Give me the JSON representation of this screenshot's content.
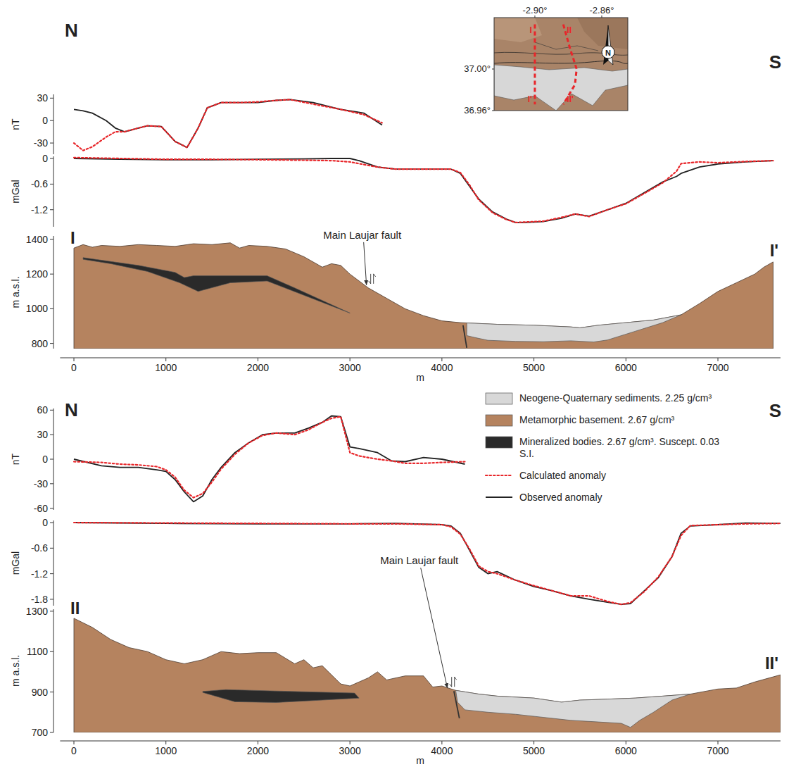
{
  "chart_data": [
    {
      "type": "map",
      "xlim": [
        -2.9244,
        -2.8444
      ],
      "ylim": [
        36.96,
        37.0495
      ],
      "xticks": [
        {
          "value": -2.9,
          "label": "-2.90°"
        },
        {
          "value": -2.86,
          "label": "-2.86°"
        }
      ],
      "yticks": [
        {
          "value": 37.0,
          "label": "37.00°"
        },
        {
          "value": 36.96,
          "label": "36.96°"
        }
      ],
      "series": [
        {
          "color": "#e8262a",
          "line_style": "dashed",
          "labels": [
            "I",
            "I'"
          ],
          "x": [
            -2.9,
            -2.9
          ],
          "y": [
            37.043,
            36.966
          ]
        },
        {
          "color": "#e8262a",
          "line_style": "dashed",
          "labels": [
            "II",
            "II'"
          ],
          "x": [
            -2.883,
            -2.879,
            -2.875,
            -2.876,
            -2.883
          ],
          "y": [
            37.043,
            37.02,
            37.0,
            36.985,
            36.966
          ]
        }
      ],
      "annotations": [
        {
          "text": "N"
        }
      ]
    },
    {
      "type": "line",
      "xlim": [
        -150,
        7680
      ],
      "ylim": [
        -45,
        35
      ],
      "yticks": [
        30,
        0,
        -30
      ],
      "ylabel": "nT",
      "tick_labels": "y",
      "annotations": [
        {
          "text": "N"
        },
        {
          "text": "S"
        }
      ],
      "x": [
        0,
        100,
        200,
        350,
        450,
        550,
        700,
        800,
        950,
        1100,
        1230,
        1350,
        1450,
        1600,
        1800,
        2000,
        2200,
        2350,
        2600,
        2900,
        3150,
        3350
      ],
      "series": [
        {
          "color": "#e8262a",
          "line_style": "dotted",
          "values": [
            -30,
            -40,
            -35,
            -22,
            -15,
            -15,
            -10,
            -7,
            -8,
            -28,
            -36,
            -10,
            17,
            24,
            24,
            25,
            27,
            28,
            22,
            15,
            8,
            -3
          ]
        },
        {
          "color": "#222222",
          "line_style": "solid",
          "values": [
            15,
            13,
            10,
            0,
            -10,
            -15,
            -10,
            -7,
            -8,
            -28,
            -36,
            -10,
            17,
            24,
            24,
            24,
            27,
            28,
            24,
            15,
            10,
            -6
          ]
        }
      ]
    },
    {
      "type": "line",
      "xlim": [
        -150,
        7680
      ],
      "ylim": [
        -1.6,
        0.05
      ],
      "yticks": [
        0,
        -0.6,
        -1.2
      ],
      "ylabel": "mGal",
      "tick_labels": "y",
      "x": [
        0,
        500,
        1000,
        1500,
        2000,
        2500,
        2800,
        3000,
        3100,
        3300,
        3500,
        3800,
        4100,
        4200,
        4300,
        4400,
        4550,
        4700,
        4800,
        4900,
        5100,
        5300,
        5450,
        5600,
        5800,
        6000,
        6200,
        6400,
        6550,
        6600,
        6800,
        7000,
        7300,
        7600
      ],
      "series": [
        {
          "color": "#e8262a",
          "line_style": "dotted",
          "values": [
            0.02,
            0,
            -0.02,
            -0.02,
            -0.03,
            -0.04,
            -0.05,
            -0.08,
            -0.12,
            -0.2,
            -0.25,
            -0.25,
            -0.25,
            -0.33,
            -0.62,
            -0.97,
            -1.27,
            -1.43,
            -1.5,
            -1.49,
            -1.47,
            -1.38,
            -1.3,
            -1.36,
            -1.2,
            -1.06,
            -0.82,
            -0.57,
            -0.3,
            -0.12,
            -0.08,
            -0.1,
            -0.07,
            -0.05
          ]
        },
        {
          "color": "#222222",
          "line_style": "solid",
          "values": [
            0,
            -0.02,
            -0.03,
            -0.03,
            -0.02,
            -0.01,
            0,
            0,
            -0.05,
            -0.2,
            -0.25,
            -0.25,
            -0.25,
            -0.35,
            -0.65,
            -0.95,
            -1.25,
            -1.42,
            -1.5,
            -1.5,
            -1.48,
            -1.4,
            -1.3,
            -1.35,
            -1.2,
            -1.05,
            -0.8,
            -0.55,
            -0.42,
            -0.35,
            -0.2,
            -0.13,
            -0.08,
            -0.05
          ]
        }
      ]
    },
    {
      "type": "cross_section",
      "xlim": [
        -150,
        7680
      ],
      "ylim": [
        770,
        1420
      ],
      "xticks": [
        0,
        1000,
        2000,
        3000,
        4000,
        5000,
        6000,
        7000
      ],
      "yticks": [
        800,
        1000,
        1200,
        1400
      ],
      "xlabel": "m",
      "ylabel": "m a.s.l.",
      "end_labels": [
        "I",
        "I'"
      ],
      "annotations": [
        {
          "text": "Main Laujar fault",
          "x": 3180,
          "y": 1128
        }
      ],
      "faults": [
        {
          "x": [
            4230,
            4270
          ],
          "y": [
            905,
            775
          ]
        }
      ],
      "series": [
        {
          "type": "polygon",
          "color": "#d8d8d8",
          "x": [
            4270,
            4400,
            4600,
            5000,
            5400,
            5500,
            5700,
            6000,
            6300,
            6600,
            6400,
            6100,
            5800,
            5650,
            5400,
            5100,
            4800,
            4500,
            4350,
            4270
          ],
          "y": [
            918,
            915,
            910,
            905,
            895,
            890,
            905,
            920,
            935,
            965,
            920,
            870,
            820,
            808,
            815,
            810,
            812,
            818,
            835,
            845
          ]
        },
        {
          "type": "area",
          "color": "#b5835f",
          "x": [
            0,
            100,
            200,
            300,
            500,
            700,
            900,
            1100,
            1300,
            1500,
            1700,
            1800,
            1900,
            2100,
            2300,
            2500,
            2700,
            2800,
            2900,
            3000,
            3200,
            3400,
            3600,
            3800,
            4000,
            4200,
            4400,
            4600,
            5000,
            5400,
            5500,
            5700,
            6000,
            6300,
            6600,
            6800,
            7000,
            7200,
            7400,
            7500,
            7600
          ],
          "y": [
            1350,
            1370,
            1355,
            1365,
            1360,
            1370,
            1365,
            1360,
            1375,
            1370,
            1380,
            1350,
            1365,
            1360,
            1345,
            1300,
            1240,
            1260,
            1250,
            1200,
            1120,
            1060,
            1000,
            960,
            930,
            920,
            915,
            910,
            905,
            895,
            890,
            905,
            920,
            935,
            965,
            1030,
            1100,
            1150,
            1200,
            1240,
            1270
          ]
        },
        {
          "type": "polygon",
          "color": "#2a2a2a",
          "x": [
            100,
            700,
            1100,
            1200,
            1300,
            2100,
            2400,
            3000,
            2100,
            1700,
            1350,
            1150,
            800,
            400,
            100
          ],
          "y": [
            1295,
            1250,
            1210,
            1180,
            1190,
            1190,
            1120,
            975,
            1160,
            1150,
            1100,
            1150,
            1215,
            1260,
            1285
          ]
        }
      ]
    },
    {
      "type": "line",
      "xlim": [
        -150,
        7680
      ],
      "ylim": [
        -62,
        62
      ],
      "yticks": [
        60,
        30,
        0,
        -30,
        -60
      ],
      "ylabel": "nT",
      "tick_labels": "y",
      "legend": "upper right",
      "annotations": [
        {
          "text": "N"
        },
        {
          "text": "S"
        }
      ],
      "x": [
        0,
        300,
        500,
        700,
        900,
        1000,
        1100,
        1200,
        1300,
        1400,
        1500,
        1600,
        1750,
        1900,
        2050,
        2200,
        2400,
        2550,
        2700,
        2800,
        2900,
        3000,
        3100,
        3300,
        3450,
        3600,
        3800,
        4000,
        4250
      ],
      "series": [
        {
          "name": "Calculated anomaly",
          "color": "#e8262a",
          "line_style": "dotted",
          "values": [
            -3,
            -4,
            -6,
            -7,
            -9,
            -13,
            -22,
            -38,
            -47,
            -42,
            -28,
            -12,
            6,
            20,
            29,
            32,
            30,
            36,
            45,
            50,
            52,
            8,
            4,
            0,
            -2,
            -5,
            -5,
            -4,
            -3
          ]
        },
        {
          "name": "Observed anomaly",
          "color": "#222222",
          "line_style": "solid",
          "values": [
            0,
            -8,
            -10,
            -10,
            -13,
            -15,
            -25,
            -40,
            -52,
            -45,
            -25,
            -10,
            8,
            20,
            30,
            32,
            32,
            38,
            45,
            53,
            52,
            15,
            13,
            8,
            -2,
            -3,
            2,
            0,
            -6
          ]
        }
      ]
    },
    {
      "type": "line",
      "xlim": [
        -150,
        7680
      ],
      "ylim": [
        -1.95,
        0.05
      ],
      "yticks": [
        0,
        -0.6,
        -1.2,
        -1.8
      ],
      "ylabel": "mGal",
      "tick_labels": "y",
      "x": [
        0,
        1000,
        2000,
        3000,
        3500,
        4000,
        4100,
        4200,
        4300,
        4400,
        4500,
        4600,
        4800,
        5000,
        5200,
        5400,
        5600,
        5800,
        5950,
        6050,
        6200,
        6350,
        6500,
        6600,
        6700,
        7000,
        7300,
        7680
      ],
      "series": [
        {
          "color": "#e8262a",
          "line_style": "dotted",
          "values": [
            0,
            -0.01,
            -0.02,
            -0.03,
            -0.03,
            -0.05,
            -0.1,
            -0.27,
            -0.62,
            -1.02,
            -1.15,
            -1.2,
            -1.35,
            -1.48,
            -1.6,
            -1.72,
            -1.72,
            -1.85,
            -1.92,
            -1.88,
            -1.62,
            -1.28,
            -0.8,
            -0.3,
            -0.07,
            -0.05,
            -0.03,
            -0.02
          ]
        },
        {
          "color": "#222222",
          "line_style": "solid",
          "values": [
            0,
            -0.02,
            -0.03,
            -0.03,
            -0.02,
            -0.05,
            -0.08,
            -0.25,
            -0.65,
            -1.05,
            -1.2,
            -1.15,
            -1.35,
            -1.5,
            -1.6,
            -1.72,
            -1.8,
            -1.87,
            -1.92,
            -1.9,
            -1.6,
            -1.3,
            -0.8,
            -0.25,
            -0.08,
            -0.05,
            -0.01,
            -0.02
          ]
        }
      ]
    },
    {
      "type": "cross_section",
      "xlim": [
        -150,
        7680
      ],
      "ylim": [
        700,
        1310
      ],
      "xticks": [
        0,
        1000,
        2000,
        3000,
        4000,
        5000,
        6000,
        7000
      ],
      "yticks": [
        700,
        900,
        1100,
        1300
      ],
      "xlabel": "m",
      "ylabel": "m a.s.l.",
      "end_labels": [
        "II",
        "II'"
      ],
      "annotations": [
        {
          "text": "Main Laujar fault",
          "x": 4060,
          "y": 912
        }
      ],
      "faults": [
        {
          "x": [
            4130,
            4190
          ],
          "y": [
            905,
            770
          ]
        }
      ],
      "series": [
        {
          "type": "polygon",
          "name": "Neogene-Quaternary sediments. 2.25 g/cm³",
          "color": "#d8d8d8",
          "x": [
            4150,
            4400,
            4600,
            5000,
            5300,
            5500,
            5800,
            6100,
            6400,
            6700,
            6500,
            6300,
            6150,
            6050,
            5950,
            5700,
            5400,
            5100,
            4800,
            4500,
            4250,
            4170
          ],
          "y": [
            908,
            890,
            880,
            870,
            850,
            860,
            865,
            870,
            880,
            890,
            860,
            800,
            760,
            725,
            745,
            752,
            760,
            775,
            790,
            800,
            812,
            850
          ]
        },
        {
          "type": "area",
          "name": "Metamorphic basement. 2.67 g/cm³",
          "color": "#b5835f",
          "x": [
            0,
            200,
            400,
            600,
            800,
            1000,
            1200,
            1400,
            1600,
            1800,
            2000,
            2200,
            2400,
            2500,
            2600,
            2700,
            2900,
            3000,
            3200,
            3300,
            3400,
            3600,
            3800,
            3900,
            4000,
            4150,
            4400,
            4600,
            5000,
            5300,
            5500,
            5800,
            6100,
            6400,
            6700,
            7000,
            7200,
            7400,
            7600,
            7680
          ],
          "y": [
            1265,
            1220,
            1160,
            1120,
            1100,
            1060,
            1040,
            1060,
            1100,
            1090,
            1095,
            1095,
            1040,
            1060,
            1020,
            1030,
            940,
            930,
            970,
            1000,
            960,
            980,
            980,
            925,
            930,
            908,
            890,
            880,
            870,
            850,
            860,
            865,
            870,
            880,
            890,
            915,
            920,
            950,
            975,
            985
          ]
        },
        {
          "type": "polygon",
          "name": "Mineralized bodies. 2.67 g/cm³. Suscept. 0.03 S.I.",
          "color": "#2a2a2a",
          "x": [
            1400,
            1650,
            2200,
            3050,
            3100,
            2200,
            1750,
            1400
          ],
          "y": [
            903,
            912,
            905,
            895,
            870,
            848,
            852,
            898
          ]
        }
      ]
    }
  ]
}
